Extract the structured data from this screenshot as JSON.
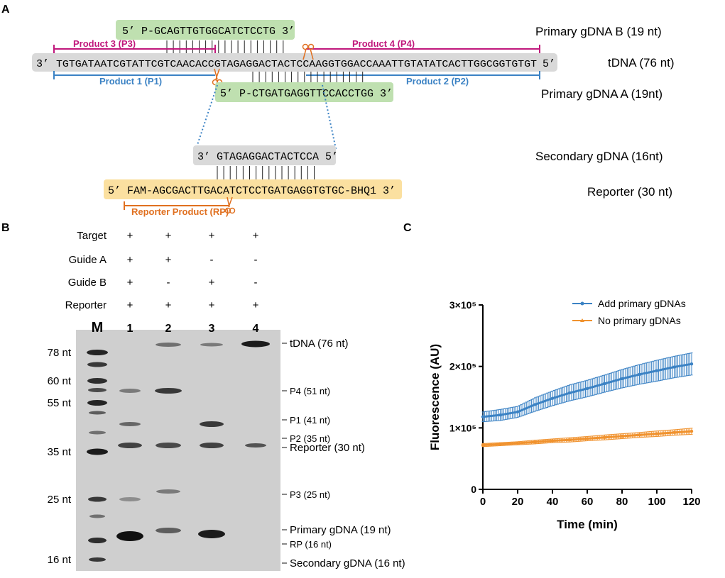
{
  "panel_a": {
    "label": "A",
    "guide_b_seq": "5’  P-GCAGTTGTGGCATCTCCTG 3’",
    "guide_a_seq": "5’  P-CTGATGAGGTTCCACCTGG 3’",
    "tdna_3": "3’",
    "tdna_5": "5’",
    "tdna_seq": "TGTGATAATCGTATTCGTCAACACCGTAGAGGACTACTCCAAGGTGGACCAAATTGTATATCACTTGGCGGTGTGT",
    "product1": "Product 1 (P1)",
    "product2": "Product 2 (P2)",
    "product3": "Product 3 (P3)",
    "product4": "Product 4 (P4)",
    "secondary_seq": "3’  GTAGAGGACTACTCCA 5’",
    "reporter_seq": "5’  FAM-AGCGACTTGACATCTCCTGATGAGGTGTGC-BHQ1 3’",
    "reporter_product": "Reporter Product (RP)",
    "right_labels": {
      "guide_b": "Primary gDNA B (19 nt)",
      "tdna": "tDNA (76 nt)",
      "guide_a": "Primary gDNA A (19nt)",
      "secondary": "Secondary gDNA (16nt)",
      "reporter": "Reporter (30 nt)"
    },
    "colors": {
      "guide_box": "#bfe0b0",
      "tdna_box": "#d9d9d9",
      "reporter_box": "#fbe0a0",
      "pink": "#c0187c",
      "blue": "#3b82c4",
      "orange": "#e07020"
    }
  },
  "panel_b": {
    "label": "B",
    "conditions": [
      {
        "name": "Target",
        "values": [
          "+",
          "+",
          "+",
          "+"
        ]
      },
      {
        "name": "Guide A",
        "values": [
          "+",
          "+",
          "-",
          "-"
        ]
      },
      {
        "name": "Guide B",
        "values": [
          "+",
          "-",
          "+",
          "-"
        ]
      },
      {
        "name": "Reporter",
        "values": [
          "+",
          "+",
          "+",
          "+"
        ]
      }
    ],
    "lanes": [
      "M",
      "1",
      "2",
      "3",
      "4"
    ],
    "marker_labels": [
      "78 nt",
      "60 nt",
      "55 nt",
      "35 nt",
      "25 nt",
      "16 nt"
    ],
    "band_labels": [
      "tDNA (76 nt)",
      "P4 (51 nt)",
      "P1 (41 nt)",
      "P2 (35 nt)",
      "Reporter (30 nt)",
      "P3 (25 nt)",
      "Primary gDNA (19 nt)",
      "RP (16 nt)",
      "Secondary gDNA (16 nt)"
    ]
  },
  "panel_c": {
    "label": "C",
    "chart_data": {
      "type": "line",
      "xlabel": "Time (min)",
      "ylabel": "Fluorescence (AU)",
      "xlim": [
        0,
        120
      ],
      "ylim": [
        0,
        300000
      ],
      "x_ticks": [
        "0",
        "20",
        "40",
        "60",
        "80",
        "100",
        "120"
      ],
      "y_ticks": [
        "0",
        "1×10⁵",
        "2×10⁵",
        "3×10⁵"
      ],
      "legend_position": "top-right",
      "series": [
        {
          "name": "Add primary gDNAs",
          "color": "#3b82c4",
          "x": [
            0,
            10,
            20,
            30,
            40,
            50,
            60,
            70,
            80,
            90,
            100,
            110,
            120
          ],
          "values": [
            118000,
            121000,
            126000,
            138000,
            148000,
            157000,
            164000,
            172000,
            180000,
            187000,
            193000,
            199000,
            204000
          ],
          "error": [
            8000,
            9000,
            9000,
            11000,
            12000,
            13000,
            13500,
            14000,
            15000,
            16000,
            17000,
            17500,
            18000
          ]
        },
        {
          "name": "No primary gDNAs",
          "color": "#f0922e",
          "x": [
            0,
            10,
            20,
            30,
            40,
            50,
            60,
            70,
            80,
            90,
            100,
            110,
            120
          ],
          "values": [
            72000,
            73500,
            75000,
            77000,
            79000,
            80500,
            82500,
            84500,
            86500,
            88500,
            90500,
            92500,
            94500
          ],
          "error": [
            2500,
            2500,
            2500,
            3000,
            3000,
            3500,
            3500,
            4000,
            4000,
            4000,
            4500,
            4500,
            5000
          ]
        }
      ]
    }
  }
}
